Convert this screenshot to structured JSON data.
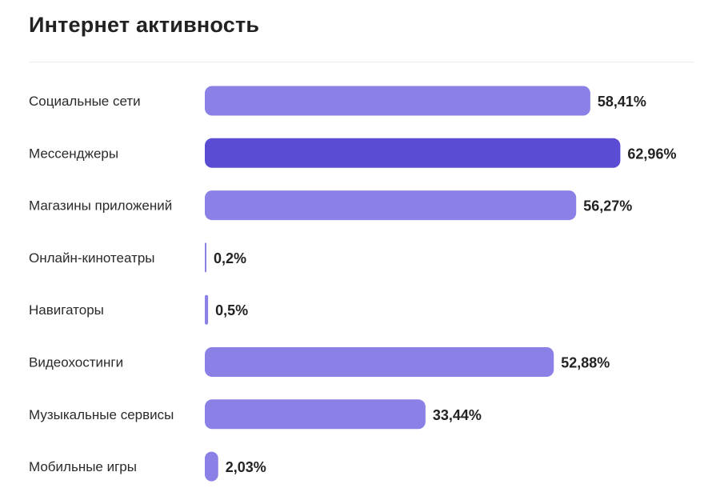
{
  "chart_data": {
    "type": "bar",
    "orientation": "horizontal",
    "title": "Интернет активность",
    "categories": [
      "Социальные сети",
      "Мессенджеры",
      "Магазины приложений",
      "Онлайн-кинотеатры",
      "Навигаторы",
      "Видеохостинги",
      "Музыкальные сервисы",
      "Мобильные игры"
    ],
    "values": [
      58.41,
      62.96,
      56.27,
      0.2,
      0.5,
      52.88,
      33.44,
      2.03
    ],
    "value_labels": [
      "58,41%",
      "62,96%",
      "56,27%",
      "0,2%",
      "0,5%",
      "52,88%",
      "33,44%",
      "2,03%"
    ],
    "unit": "%",
    "highlighted_index": 1,
    "colors": {
      "bar": "#8b80e6",
      "bar_highlight": "#5b4cd4"
    },
    "grid": false,
    "legend": "none"
  }
}
